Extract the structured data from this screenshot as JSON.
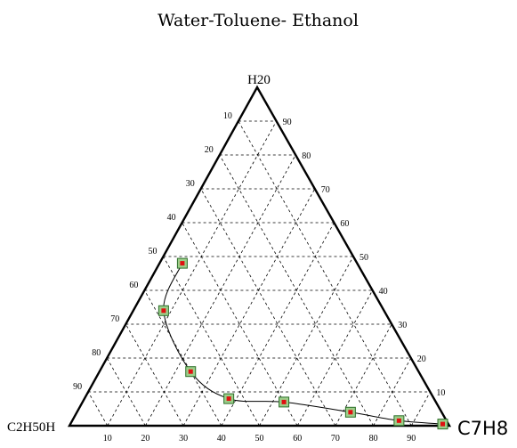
{
  "chart_data": {
    "type": "ternary",
    "title": "Water-Toluene- Ethanol",
    "vertices": {
      "top": "H20",
      "bottom_left": "C2H50H",
      "bottom_right": "C7H8"
    },
    "ticks": [
      10,
      20,
      30,
      40,
      50,
      60,
      70,
      80,
      90
    ],
    "grid": true,
    "series": [
      {
        "points": [
          {
            "water": 48,
            "toluene": 6,
            "ethanol": 46
          },
          {
            "water": 34,
            "toluene": 8,
            "ethanol": 58
          },
          {
            "water": 16,
            "toluene": 24,
            "ethanol": 60
          },
          {
            "water": 8,
            "toluene": 38,
            "ethanol": 54
          },
          {
            "water": 7,
            "toluene": 53,
            "ethanol": 40
          },
          {
            "water": 4,
            "toluene": 72,
            "ethanol": 24
          },
          {
            "water": 1.5,
            "toluene": 86,
            "ethanol": 12.5
          },
          {
            "water": 0.5,
            "toluene": 98,
            "ethanol": 1.5
          }
        ]
      }
    ]
  }
}
